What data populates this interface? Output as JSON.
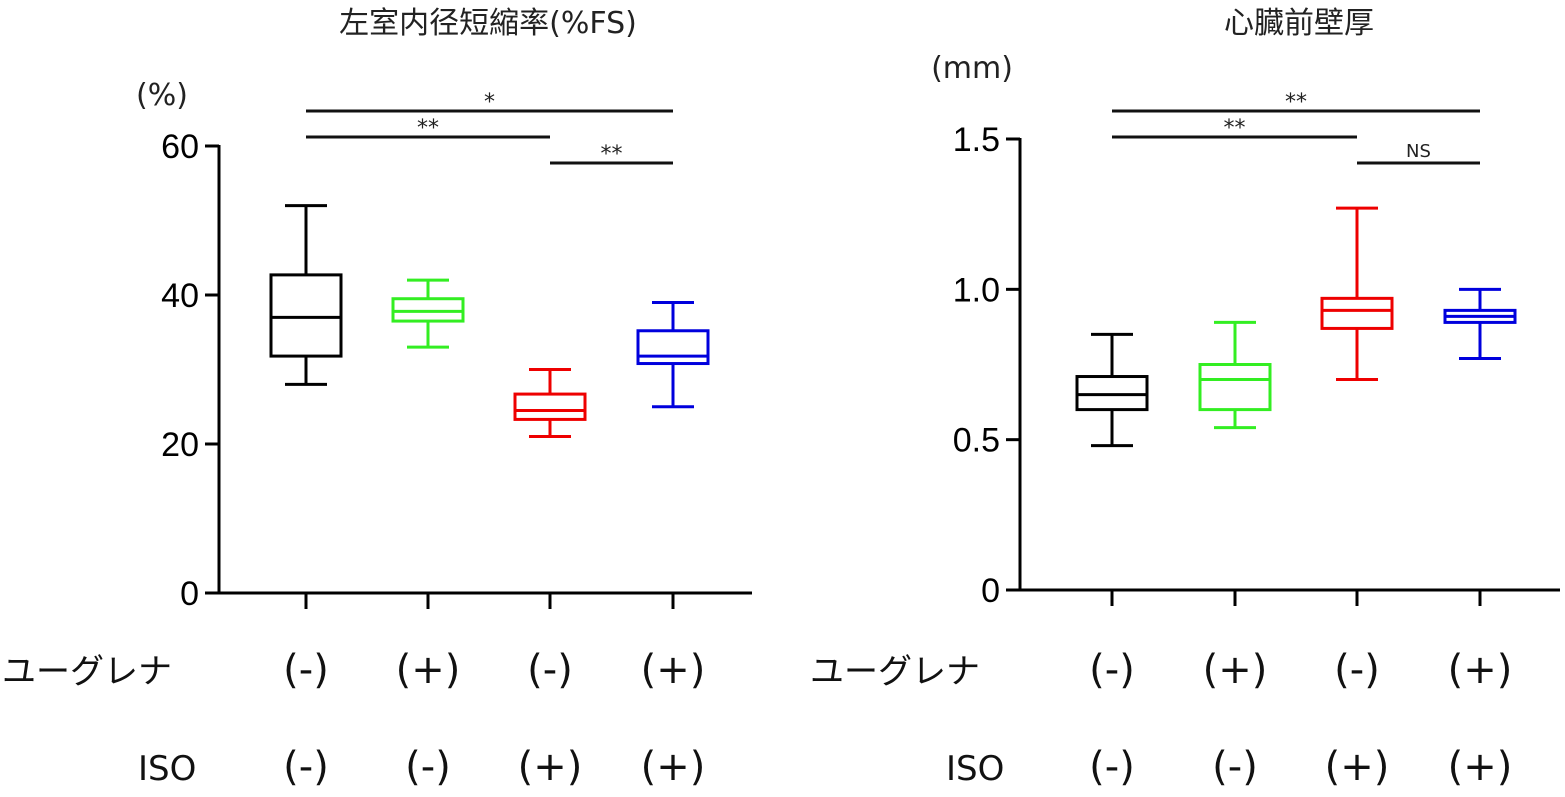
{
  "chart_data": [
    {
      "type": "box",
      "title": "左室内径短縮率(%FS)",
      "unit": "(%)",
      "ylim": [
        0,
        60
      ],
      "yticks": [
        0,
        20,
        40,
        60
      ],
      "ytick_labels": [
        "0",
        "20",
        "40",
        "60"
      ],
      "row_labels": [
        "ユーグレナ",
        "ISO"
      ],
      "categories": [
        {
          "row1": "(-)",
          "row2": "(-)"
        },
        {
          "row1": "(+)",
          "row2": "(-)"
        },
        {
          "row1": "(-)",
          "row2": "(+)"
        },
        {
          "row1": "(+)",
          "row2": "(+)"
        }
      ],
      "boxes": [
        {
          "color": "#000000",
          "min": 28,
          "q1": 31.8,
          "median": 37,
          "q3": 42.7,
          "max": 52
        },
        {
          "color": "#33ee22",
          "min": 33,
          "q1": 36.5,
          "median": 37.8,
          "q3": 39.5,
          "max": 42
        },
        {
          "color": "#ee0000",
          "min": 21,
          "q1": 23.3,
          "median": 24.5,
          "q3": 26.7,
          "max": 30
        },
        {
          "color": "#0000dd",
          "min": 25,
          "q1": 30.8,
          "median": 31.8,
          "q3": 35.2,
          "max": 39
        }
      ],
      "significance": [
        {
          "from": 0,
          "to": 3,
          "label": "*"
        },
        {
          "from": 0,
          "to": 2,
          "label": "**"
        },
        {
          "from": 2,
          "to": 3,
          "label": "**"
        }
      ]
    },
    {
      "type": "box",
      "title": "心臓前壁厚",
      "unit": "(mm)",
      "ylim": [
        0,
        1.5
      ],
      "yticks": [
        0,
        0.5,
        1.0,
        1.5
      ],
      "ytick_labels": [
        "0",
        "0.5",
        "1.0",
        "1.5"
      ],
      "row_labels": [
        "ユーグレナ",
        "ISO"
      ],
      "categories": [
        {
          "row1": "(-)",
          "row2": "(-)"
        },
        {
          "row1": "(+)",
          "row2": "(-)"
        },
        {
          "row1": "(-)",
          "row2": "(+)"
        },
        {
          "row1": "(+)",
          "row2": "(+)"
        }
      ],
      "boxes": [
        {
          "color": "#000000",
          "min": 0.48,
          "q1": 0.6,
          "median": 0.65,
          "q3": 0.71,
          "max": 0.85
        },
        {
          "color": "#33ee22",
          "min": 0.54,
          "q1": 0.6,
          "median": 0.7,
          "q3": 0.75,
          "max": 0.89
        },
        {
          "color": "#ee0000",
          "min": 0.7,
          "q1": 0.87,
          "median": 0.93,
          "q3": 0.97,
          "max": 1.27
        },
        {
          "color": "#0000dd",
          "min": 0.77,
          "q1": 0.89,
          "median": 0.91,
          "q3": 0.93,
          "max": 1.0
        }
      ],
      "significance": [
        {
          "from": 0,
          "to": 3,
          "label": "**"
        },
        {
          "from": 0,
          "to": 2,
          "label": "**"
        },
        {
          "from": 2,
          "to": 3,
          "label": "NS"
        }
      ]
    }
  ]
}
